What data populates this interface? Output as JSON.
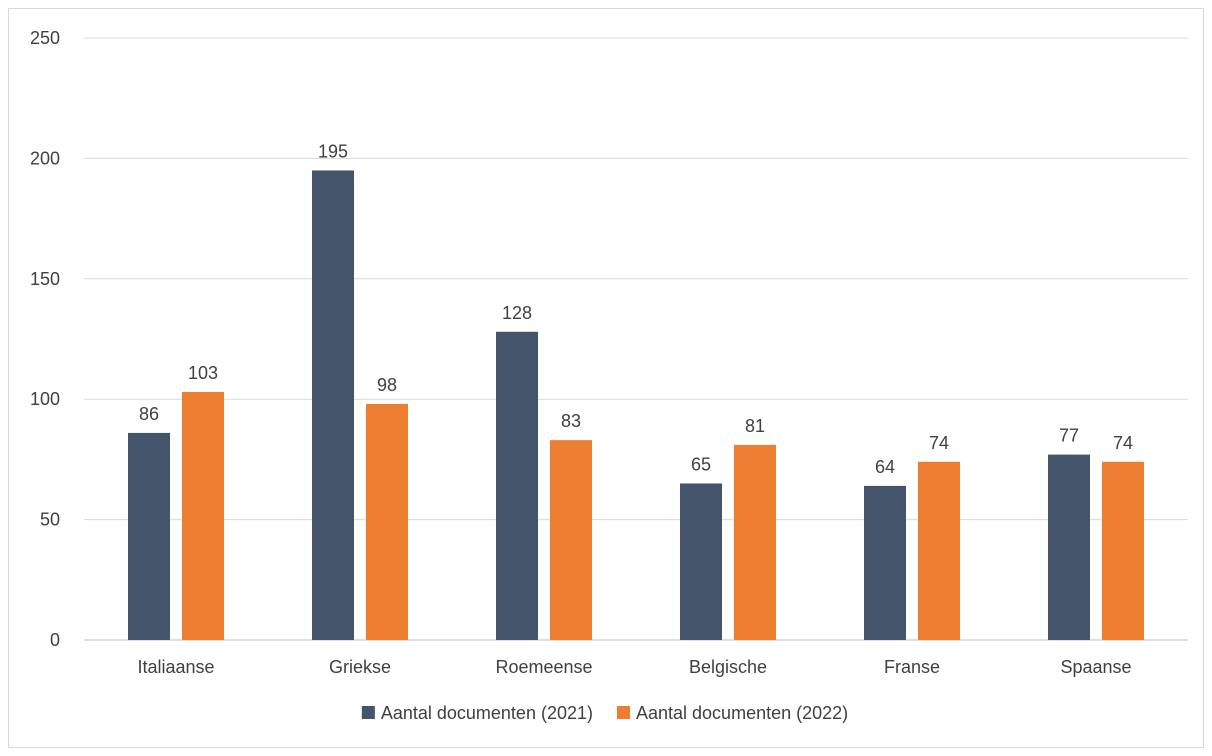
{
  "chart_data": {
    "type": "bar",
    "title": "",
    "xlabel": "",
    "ylabel": "",
    "categories": [
      "Italiaanse",
      "Griekse",
      "Roemeense",
      "Belgische",
      "Franse",
      "Spaanse"
    ],
    "series": [
      {
        "name": "Aantal documenten (2021)",
        "color": "#44546a",
        "values": [
          86,
          195,
          128,
          65,
          64,
          77
        ]
      },
      {
        "name": "Aantal documenten (2022)",
        "color": "#ed7d31",
        "values": [
          103,
          98,
          83,
          81,
          74,
          74
        ]
      }
    ],
    "ylim": [
      0,
      250
    ],
    "yticks": [
      0,
      50,
      100,
      150,
      200,
      250
    ],
    "grid": true,
    "legend_position": "bottom",
    "data_labels": true
  }
}
